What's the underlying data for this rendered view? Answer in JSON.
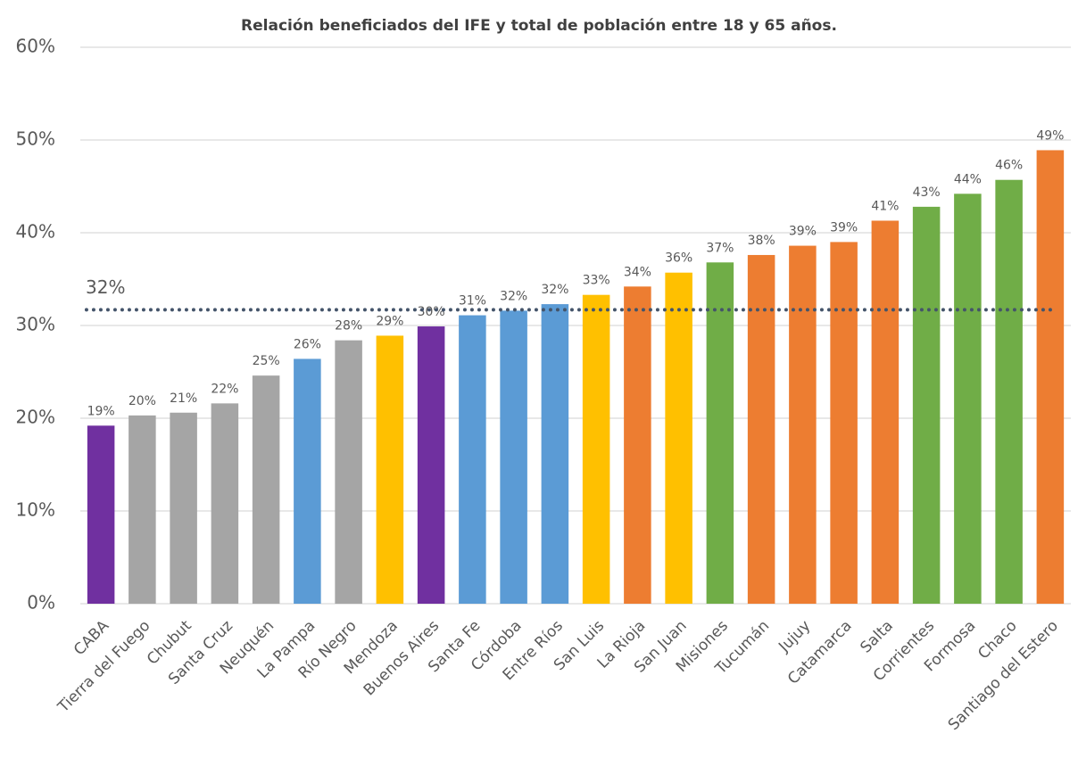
{
  "chart_data": {
    "type": "bar",
    "title": "Relación beneficiados del IFE y total de población entre 18 y 65 años.",
    "categories": [
      "CABA",
      "Tierra del Fuego",
      "Chubut",
      "Santa Cruz",
      "Neuquén",
      "La Pampa",
      "Río Negro",
      "Mendoza",
      "Buenos Aires",
      "Santa Fe",
      "Córdoba",
      "Entre Ríos",
      "San Luis",
      "La Rioja",
      "San Juan",
      "Misiones",
      "Tucumán",
      "Jujuy",
      "Catamarca",
      "Salta",
      "Corrientes",
      "Formosa",
      "Chaco",
      "Santiago del Estero"
    ],
    "values": [
      19.2,
      20.3,
      20.6,
      21.6,
      24.6,
      26.4,
      28.4,
      28.9,
      29.9,
      31.1,
      31.6,
      32.3,
      33.3,
      34.2,
      35.7,
      36.8,
      37.6,
      38.6,
      39.0,
      41.3,
      42.8,
      44.2,
      45.7,
      48.9
    ],
    "value_labels": [
      "19%",
      "20%",
      "21%",
      "22%",
      "25%",
      "26%",
      "28%",
      "29%",
      "30%",
      "31%",
      "32%",
      "32%",
      "33%",
      "34%",
      "36%",
      "37%",
      "38%",
      "39%",
      "39%",
      "41%",
      "43%",
      "44%",
      "46%",
      "49%"
    ],
    "colors": [
      "#7030a0",
      "#a5a5a5",
      "#a5a5a5",
      "#a5a5a5",
      "#a5a5a5",
      "#5b9bd5",
      "#a5a5a5",
      "#ffc000",
      "#7030a0",
      "#5b9bd5",
      "#5b9bd5",
      "#5b9bd5",
      "#ffc000",
      "#ed7d31",
      "#ffc000",
      "#70ad47",
      "#ed7d31",
      "#ed7d31",
      "#ed7d31",
      "#ed7d31",
      "#70ad47",
      "#70ad47",
      "#70ad47",
      "#ed7d31"
    ],
    "ylim": [
      0,
      60
    ],
    "yticks": [
      {
        "value": 0,
        "label": "0%"
      },
      {
        "value": 10,
        "label": "10%"
      },
      {
        "value": 20,
        "label": "20%"
      },
      {
        "value": 30,
        "label": "30%"
      },
      {
        "value": 40,
        "label": "40%"
      },
      {
        "value": 50,
        "label": "50%"
      },
      {
        "value": 60,
        "label": "60%"
      }
    ],
    "grid": true,
    "reference_line": {
      "value": 31.7,
      "label": "32%",
      "color": "#44546a"
    }
  }
}
